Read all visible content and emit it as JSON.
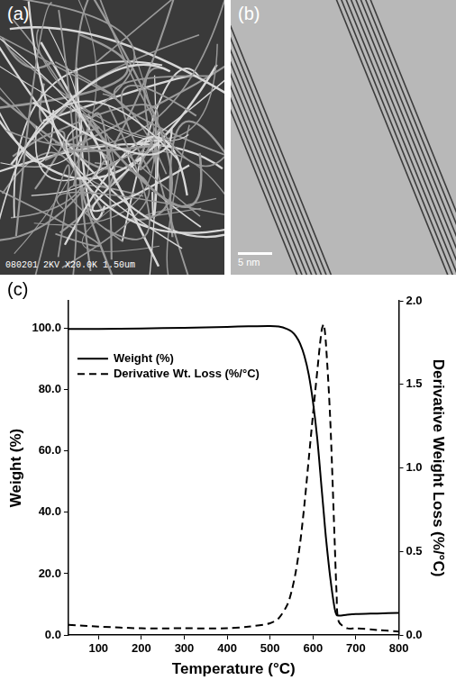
{
  "panels": [
    {
      "label": "(a)",
      "type": "image",
      "caption": "080201 2KV X20.0K 1.50um"
    },
    {
      "label": "(b)",
      "type": "image",
      "scale_bar": "5 nm"
    }
  ],
  "chart_data": {
    "type": "line",
    "panel_label": "(c)",
    "x_label": "Temperature (°C)",
    "y_label": "Weight (%)",
    "y2_label": "Derivative Weight Loss (%/°C)",
    "xlim": [
      30,
      800
    ],
    "xticks": [
      100,
      200,
      300,
      400,
      500,
      600,
      700,
      800
    ],
    "ylim": [
      0,
      109
    ],
    "yticks": [
      {
        "value": 0,
        "label": "0.0"
      },
      {
        "value": 20,
        "label": "20.0"
      },
      {
        "value": 40,
        "label": "40.0"
      },
      {
        "value": 60,
        "label": "60.0"
      },
      {
        "value": 80,
        "label": "80.0"
      },
      {
        "value": 100,
        "label": "100.0"
      }
    ],
    "y2lim": [
      0,
      2
    ],
    "y2ticks": [
      {
        "value": 0,
        "label": "0.0"
      },
      {
        "value": 0.5,
        "label": "0.5"
      },
      {
        "value": 1,
        "label": "1.0"
      },
      {
        "value": 1.5,
        "label": "1.5"
      },
      {
        "value": 2,
        "label": "2.0"
      }
    ],
    "grid": false,
    "legend": "upper left",
    "x": [
      30,
      100,
      200,
      300,
      400,
      450,
      500,
      520,
      540,
      550,
      560,
      570,
      580,
      590,
      600,
      610,
      620,
      625,
      630,
      640,
      650,
      655,
      660,
      680,
      700,
      750,
      800
    ],
    "series": [
      {
        "name": "Weight (%)",
        "color": "#000000",
        "line_style": "solid",
        "values": [
          99.8,
          99.8,
          100,
          100.2,
          100.5,
          100.7,
          100.8,
          100.6,
          99.8,
          99,
          97.5,
          95,
          91,
          85,
          76,
          64,
          48,
          40,
          32,
          19,
          9,
          6.5,
          6.3,
          6.6,
          6.8,
          7,
          7.2
        ]
      },
      {
        "name": "Derivative Wt. Loss (%/°C)",
        "color": "#000000",
        "line_style": "dashed",
        "axis": "y2",
        "values": [
          0.06,
          0.05,
          0.04,
          0.04,
          0.04,
          0.05,
          0.07,
          0.1,
          0.18,
          0.26,
          0.38,
          0.55,
          0.78,
          1.05,
          1.32,
          1.58,
          1.82,
          1.86,
          1.75,
          1.3,
          0.6,
          0.25,
          0.08,
          0.04,
          0.04,
          0.03,
          0.02
        ]
      }
    ]
  }
}
